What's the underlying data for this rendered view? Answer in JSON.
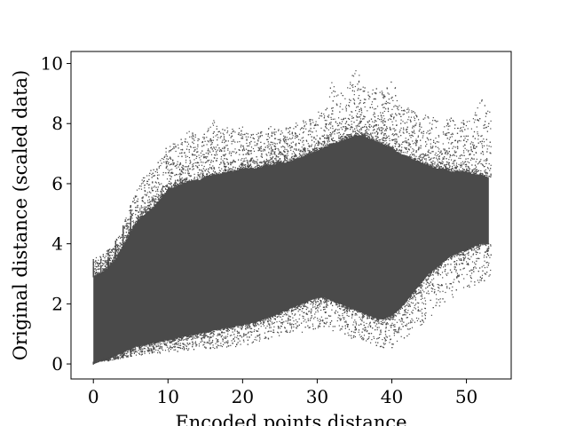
{
  "chart_data": {
    "type": "scatter",
    "title": "",
    "xlabel": "Encoded points distance",
    "ylabel": "Original distance (scaled data)",
    "xlim": [
      -3,
      56
    ],
    "ylim": [
      -0.5,
      10.4
    ],
    "xticks": [
      0,
      10,
      20,
      30,
      40,
      50
    ],
    "yticks": [
      0,
      2,
      4,
      6,
      8,
      10
    ],
    "grid": false,
    "legend": "none",
    "point_color": "#4a4a4a",
    "series": [
      {
        "x": [
          0,
          1,
          2,
          3,
          4,
          5,
          6,
          7,
          8,
          9,
          10,
          11,
          12,
          13,
          14,
          15,
          16,
          17,
          18,
          19,
          20,
          21,
          22,
          23,
          24,
          25,
          26,
          27,
          28,
          29,
          30,
          31,
          32,
          33,
          34,
          35,
          36,
          37,
          38,
          39,
          40,
          41,
          42,
          43,
          44,
          45,
          46,
          47,
          48,
          49,
          50,
          51,
          52,
          53
        ],
        "y_min": [
          0,
          0.1,
          0.1,
          0.15,
          0.2,
          0.25,
          0.3,
          0.3,
          0.35,
          0.35,
          0.4,
          0.4,
          0.45,
          0.45,
          0.5,
          0.5,
          0.5,
          0.55,
          0.55,
          0.55,
          0.6,
          0.65,
          0.7,
          0.75,
          0.8,
          0.85,
          0.9,
          0.95,
          1.0,
          1.05,
          1.1,
          1.1,
          1.1,
          1.0,
          0.9,
          0.8,
          0.75,
          0.7,
          0.6,
          0.5,
          0.5,
          0.7,
          0.9,
          1.1,
          1.3,
          1.5,
          1.7,
          1.9,
          2.1,
          2.3,
          2.5,
          2.6,
          2.7,
          2.8
        ],
        "y_max": [
          3.5,
          3.6,
          3.8,
          4.1,
          4.6,
          5.3,
          6.0,
          6.3,
          6.5,
          6.8,
          7.3,
          7.4,
          7.6,
          7.9,
          7.5,
          7.7,
          8.2,
          7.8,
          7.9,
          7.8,
          7.9,
          7.6,
          7.8,
          7.7,
          8.0,
          7.8,
          7.9,
          8.0,
          8.1,
          8.2,
          8.4,
          8.5,
          9.4,
          9.0,
          9.2,
          9.8,
          9.6,
          9.0,
          9.3,
          9.0,
          9.8,
          8.7,
          8.5,
          8.6,
          8.2,
          8.4,
          8.1,
          8.0,
          8.3,
          8.0,
          8.2,
          8.5,
          8.9,
          8.6
        ],
        "y_dense_min": [
          0.05,
          0.15,
          0.2,
          0.3,
          0.4,
          0.5,
          0.6,
          0.65,
          0.7,
          0.75,
          0.8,
          0.85,
          0.9,
          0.95,
          1.0,
          1.05,
          1.1,
          1.15,
          1.2,
          1.25,
          1.3,
          1.35,
          1.4,
          1.5,
          1.6,
          1.7,
          1.8,
          1.9,
          2.0,
          2.1,
          2.2,
          2.2,
          2.1,
          2.0,
          1.9,
          1.8,
          1.7,
          1.6,
          1.5,
          1.5,
          1.6,
          1.8,
          2.1,
          2.4,
          2.7,
          3.0,
          3.2,
          3.4,
          3.6,
          3.7,
          3.8,
          3.9,
          4.0,
          4.0
        ],
        "y_dense_max": [
          2.9,
          3.0,
          3.2,
          3.5,
          3.9,
          4.4,
          4.8,
          5.0,
          5.2,
          5.5,
          5.8,
          5.9,
          6.0,
          6.1,
          6.1,
          6.2,
          6.3,
          6.3,
          6.4,
          6.4,
          6.5,
          6.5,
          6.5,
          6.6,
          6.6,
          6.7,
          6.7,
          6.8,
          6.9,
          7.0,
          7.1,
          7.2,
          7.3,
          7.4,
          7.5,
          7.6,
          7.6,
          7.5,
          7.4,
          7.3,
          7.2,
          7.0,
          6.9,
          6.8,
          6.7,
          6.6,
          6.5,
          6.5,
          6.4,
          6.4,
          6.4,
          6.3,
          6.3,
          6.2
        ]
      }
    ]
  }
}
